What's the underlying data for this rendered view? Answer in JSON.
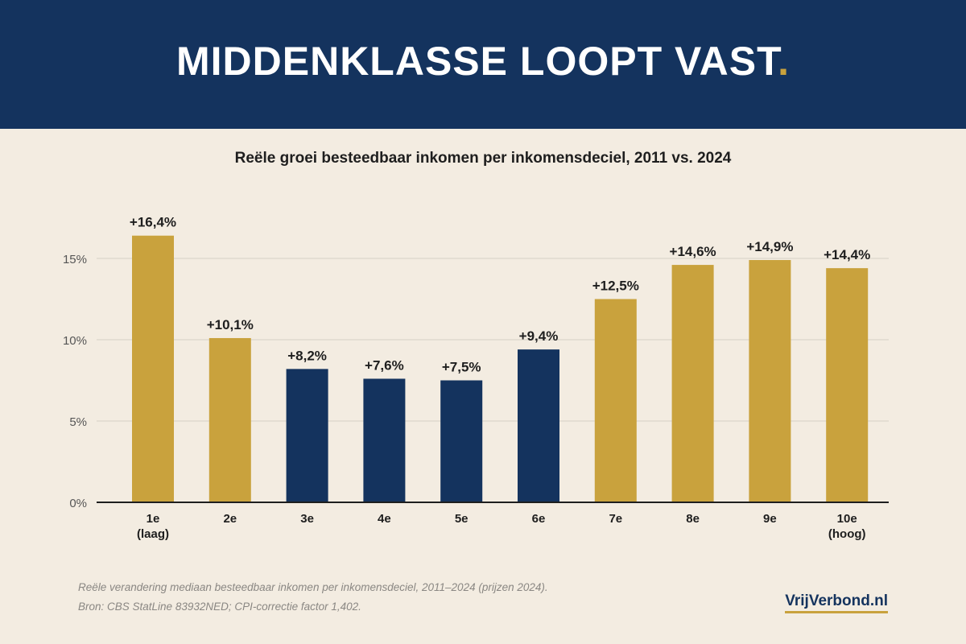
{
  "header": {
    "title": "MIDDENKLASSE LOOPT VAST",
    "dot": "."
  },
  "subtitle": "Reële groei besteedbaar inkomen per inkomensdeciel, 2011 vs. 2024",
  "colors": {
    "navy": "#14335e",
    "gold": "#c9a23d",
    "background": "#f3ece1"
  },
  "chart_data": {
    "type": "bar",
    "title": "Reële groei besteedbaar inkomen per inkomensdeciel, 2011 vs. 2024",
    "xlabel": "",
    "ylabel": "",
    "ylim": [
      0,
      17
    ],
    "yticks": [
      {
        "value": 0,
        "label": "0%"
      },
      {
        "value": 5,
        "label": "5%"
      },
      {
        "value": 10,
        "label": "10%"
      },
      {
        "value": 15,
        "label": "15%"
      }
    ],
    "grid": true,
    "categories": [
      [
        "1e",
        "(laag)"
      ],
      [
        "2e"
      ],
      [
        "3e"
      ],
      [
        "4e"
      ],
      [
        "5e"
      ],
      [
        "6e"
      ],
      [
        "7e"
      ],
      [
        "8e"
      ],
      [
        "9e"
      ],
      [
        "10e",
        "(hoog)"
      ]
    ],
    "values": [
      16.4,
      10.1,
      8.2,
      7.6,
      7.5,
      9.4,
      12.5,
      14.6,
      14.9,
      14.4
    ],
    "labels": [
      "+16,4%",
      "+10,1%",
      "+8,2%",
      "+7,6%",
      "+7,5%",
      "+9,4%",
      "+12,5%",
      "+14,6%",
      "+14,9%",
      "+14,4%"
    ],
    "bar_colors": [
      "gold",
      "gold",
      "navy",
      "navy",
      "navy",
      "navy",
      "gold",
      "gold",
      "gold",
      "gold"
    ]
  },
  "footer": {
    "note": "Reële verandering mediaan besteedbaar inkomen per inkomensdeciel, 2011–2024 (prijzen 2024).",
    "source": "Bron: CBS StatLine 83932NED; CPI-correctie factor 1,402.",
    "brand": "VrijVerbond.nl"
  }
}
